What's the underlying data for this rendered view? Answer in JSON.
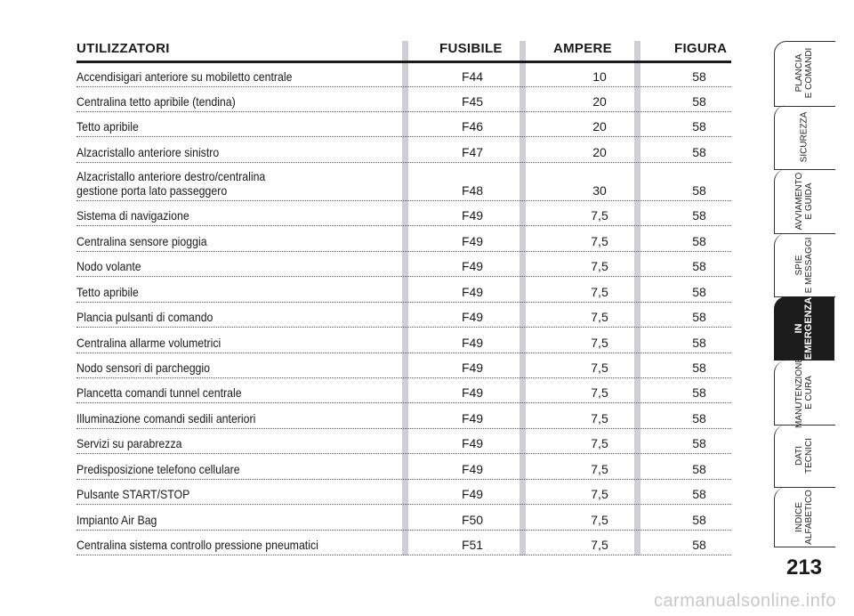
{
  "table": {
    "headers": {
      "users": "UTILIZZATORI",
      "fuse": "FUSIBILE",
      "ampere": "AMPERE",
      "figure": "FIGURA"
    },
    "rows": [
      {
        "desc": "Accendisigari anteriore su mobiletto centrale",
        "fuse": "F44",
        "amp": "10",
        "fig": "58"
      },
      {
        "desc": "Centralina tetto apribile (tendina)",
        "fuse": "F45",
        "amp": "20",
        "fig": "58"
      },
      {
        "desc": "Tetto apribile",
        "fuse": "F46",
        "amp": "20",
        "fig": "58"
      },
      {
        "desc": "Alzacristallo anteriore sinistro",
        "fuse": "F47",
        "amp": "20",
        "fig": "58"
      },
      {
        "desc": "Alzacristallo anteriore destro/centralina\ngestione porta lato passeggero",
        "fuse": "F48",
        "amp": "30",
        "fig": "58"
      },
      {
        "desc": "Sistema di navigazione",
        "fuse": "F49",
        "amp": "7,5",
        "fig": "58"
      },
      {
        "desc": "Centralina sensore pioggia",
        "fuse": "F49",
        "amp": "7,5",
        "fig": "58"
      },
      {
        "desc": "Nodo volante",
        "fuse": "F49",
        "amp": "7,5",
        "fig": "58"
      },
      {
        "desc": "Tetto apribile",
        "fuse": "F49",
        "amp": "7,5",
        "fig": "58"
      },
      {
        "desc": "Plancia pulsanti di comando",
        "fuse": "F49",
        "amp": "7,5",
        "fig": "58"
      },
      {
        "desc": "Centralina allarme volumetrici",
        "fuse": "F49",
        "amp": "7,5",
        "fig": "58"
      },
      {
        "desc": "Nodo sensori di parcheggio",
        "fuse": "F49",
        "amp": "7,5",
        "fig": "58"
      },
      {
        "desc": "Plancetta comandi tunnel centrale",
        "fuse": "F49",
        "amp": "7,5",
        "fig": "58"
      },
      {
        "desc": "Illuminazione comandi sedili anteriori",
        "fuse": "F49",
        "amp": "7,5",
        "fig": "58"
      },
      {
        "desc": "Servizi su parabrezza",
        "fuse": "F49",
        "amp": "7,5",
        "fig": "58"
      },
      {
        "desc": "Predisposizione telefono cellulare",
        "fuse": "F49",
        "amp": "7,5",
        "fig": "58"
      },
      {
        "desc": "Pulsante START/STOP",
        "fuse": "F49",
        "amp": "7,5",
        "fig": "58"
      },
      {
        "desc": "Impianto Air Bag",
        "fuse": "F50",
        "amp": "7,5",
        "fig": "58"
      },
      {
        "desc": "Centralina sistema controllo pressione pneumatici",
        "fuse": "F51",
        "amp": "7,5",
        "fig": "58"
      }
    ]
  },
  "sidebar": {
    "tabs": [
      {
        "label": "PLANCIA\nE COMANDI"
      },
      {
        "label": "SICUREZZA"
      },
      {
        "label": "AVVIAMENTO\nE GUIDA"
      },
      {
        "label": "SPIE\nE MESSAGGI"
      },
      {
        "label": "IN\nEMERGENZA"
      },
      {
        "label": "MANUTENZIONE\nE CURA"
      },
      {
        "label": "DATI\nTECNICI"
      },
      {
        "label": "INDICE\nALFABETICO"
      }
    ],
    "active_index": 4,
    "page_number": "213"
  },
  "watermark": "carmanualsonline.info",
  "colors": {
    "active_tab": "#1c1c1c",
    "column_bar": "#cfcfd4",
    "text": "#1a1a1a"
  }
}
